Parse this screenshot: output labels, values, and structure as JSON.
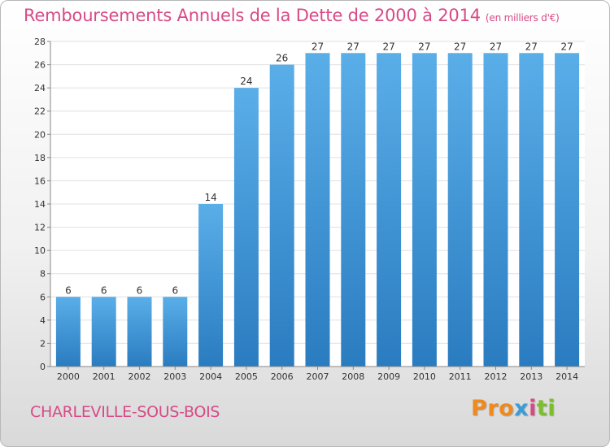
{
  "chart_data": {
    "type": "bar",
    "title": "Remboursements Annuels de la Dette de 2000 à 2014",
    "unit": "(en milliers d'€)",
    "xlabel": "",
    "ylabel": "",
    "categories": [
      "2000",
      "2001",
      "2002",
      "2003",
      "2004",
      "2005",
      "2006",
      "2007",
      "2008",
      "2009",
      "2010",
      "2011",
      "2012",
      "2013",
      "2014"
    ],
    "values": [
      6,
      6,
      6,
      6,
      14,
      24,
      26,
      27,
      27,
      27,
      27,
      27,
      27,
      27,
      27
    ],
    "data_labels": [
      "6",
      "6",
      "6",
      "6",
      "14",
      "24",
      "26",
      "27",
      "27",
      "27",
      "27",
      "27",
      "27",
      "27",
      "27"
    ],
    "ylim": [
      0,
      28
    ],
    "yticks": [
      0,
      2,
      4,
      6,
      8,
      10,
      12,
      14,
      16,
      18,
      20,
      22,
      24,
      26,
      28
    ],
    "grid": true,
    "legend": "none",
    "bar_color_light": "#5aaee8",
    "bar_color_dark": "#2a7cc0"
  },
  "footer": {
    "commune": "CHARLEVILLE-SOUS-BOIS",
    "logo_letters": [
      "Pro",
      "x",
      "i",
      "ti"
    ]
  },
  "colors": {
    "title": "#d84a86",
    "grid": "#e0e0e0"
  }
}
